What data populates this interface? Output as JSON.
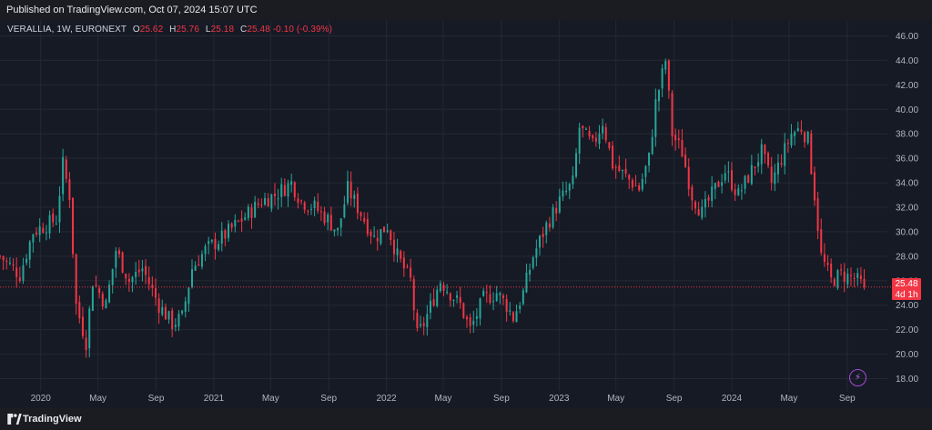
{
  "header": {
    "published": "Published on TradingView.com, Oct 07, 2024 15:07 UTC"
  },
  "legend": {
    "symbol": "VERALLIA, 1W, EURONEXT",
    "open_label": "O",
    "open": "25.62",
    "high_label": "H",
    "high": "25.76",
    "low_label": "L",
    "low": "25.18",
    "close_label": "C",
    "close": "25.48",
    "change": "-0.10 (-0.39%)"
  },
  "price_badge": {
    "price": "25.48",
    "countdown": "4d 1h"
  },
  "footer": {
    "brand": "TradingView"
  },
  "colors": {
    "up": "#26a69a",
    "down": "#f23645",
    "background": "#161a25",
    "grid": "#242833"
  },
  "icons": {
    "tv_logo": "tradingview-logo-icon",
    "bolt": "lightning-bolt-icon"
  },
  "chart_data": {
    "type": "candlestick",
    "interval": "1W",
    "ylim": [
      17,
      47
    ],
    "yticks": [
      "46.00",
      "44.00",
      "42.00",
      "40.00",
      "38.00",
      "36.00",
      "34.00",
      "32.00",
      "30.00",
      "28.00",
      "26.00",
      "24.00",
      "22.00",
      "20.00",
      "18.00"
    ],
    "xticks": [
      "2020",
      "May",
      "Sep",
      "2021",
      "May",
      "Sep",
      "2022",
      "May",
      "Sep",
      "2023",
      "May",
      "Sep",
      "2024",
      "May",
      "Sep"
    ],
    "xtick_dates": [
      "2020-01-01",
      "2020-05-01",
      "2020-09-01",
      "2021-01-01",
      "2021-05-01",
      "2021-09-01",
      "2022-01-01",
      "2022-05-01",
      "2022-09-01",
      "2023-01-01",
      "2023-05-01",
      "2023-09-01",
      "2024-01-01",
      "2024-05-01",
      "2024-09-01"
    ],
    "x_start": "2019-10-07",
    "x_end": "2024-11-25",
    "last_price": 25.48,
    "close_path": [
      [
        "2019-10-07",
        28.0
      ],
      [
        "2019-11-18",
        26.5
      ],
      [
        "2019-12-16",
        30.0
      ],
      [
        "2020-02-03",
        31.0
      ],
      [
        "2020-02-17",
        35.5
      ],
      [
        "2020-03-02",
        33.0
      ],
      [
        "2020-03-16",
        24.0
      ],
      [
        "2020-04-06",
        21.0
      ],
      [
        "2020-04-20",
        26.0
      ],
      [
        "2020-05-18",
        24.0
      ],
      [
        "2020-06-08",
        28.5
      ],
      [
        "2020-07-06",
        26.0
      ],
      [
        "2020-08-03",
        27.0
      ],
      [
        "2020-09-07",
        24.0
      ],
      [
        "2020-10-05",
        22.5
      ],
      [
        "2020-10-26",
        23.0
      ],
      [
        "2020-11-16",
        27.0
      ],
      [
        "2020-12-14",
        28.5
      ],
      [
        "2021-01-18",
        29.5
      ],
      [
        "2021-02-15",
        30.5
      ],
      [
        "2021-03-15",
        31.5
      ],
      [
        "2021-04-12",
        32.5
      ],
      [
        "2021-05-10",
        33.0
      ],
      [
        "2021-06-14",
        34.0
      ],
      [
        "2021-07-05",
        32.5
      ],
      [
        "2021-08-02",
        32.0
      ],
      [
        "2021-08-30",
        31.0
      ],
      [
        "2021-09-20",
        30.0
      ],
      [
        "2021-10-11",
        33.5
      ],
      [
        "2021-11-08",
        31.5
      ],
      [
        "2021-12-06",
        29.5
      ],
      [
        "2022-01-03",
        30.5
      ],
      [
        "2022-01-24",
        28.0
      ],
      [
        "2022-02-21",
        26.0
      ],
      [
        "2022-03-07",
        21.5
      ],
      [
        "2022-03-21",
        22.5
      ],
      [
        "2022-04-25",
        26.0
      ],
      [
        "2022-05-16",
        25.0
      ],
      [
        "2022-06-06",
        24.0
      ],
      [
        "2022-06-27",
        22.0
      ],
      [
        "2022-07-25",
        24.5
      ],
      [
        "2022-08-22",
        25.0
      ],
      [
        "2022-09-12",
        24.0
      ],
      [
        "2022-09-26",
        23.0
      ],
      [
        "2022-10-17",
        25.0
      ],
      [
        "2022-11-07",
        28.0
      ],
      [
        "2022-12-05",
        30.5
      ],
      [
        "2023-01-02",
        32.5
      ],
      [
        "2023-01-30",
        34.0
      ],
      [
        "2023-02-13",
        38.5
      ],
      [
        "2023-03-13",
        37.0
      ],
      [
        "2023-04-03",
        39.0
      ],
      [
        "2023-04-24",
        35.5
      ],
      [
        "2023-05-22",
        34.5
      ],
      [
        "2023-06-19",
        33.5
      ],
      [
        "2023-07-10",
        36.0
      ],
      [
        "2023-07-24",
        40.5
      ],
      [
        "2023-08-14",
        44.0
      ],
      [
        "2023-08-28",
        38.0
      ],
      [
        "2023-09-18",
        36.5
      ],
      [
        "2023-10-09",
        33.0
      ],
      [
        "2023-10-30",
        31.5
      ],
      [
        "2023-11-27",
        33.5
      ],
      [
        "2023-12-18",
        35.0
      ],
      [
        "2024-01-15",
        33.0
      ],
      [
        "2024-02-05",
        34.5
      ],
      [
        "2024-03-04",
        36.5
      ],
      [
        "2024-03-25",
        34.0
      ],
      [
        "2024-04-15",
        36.0
      ],
      [
        "2024-05-06",
        38.0
      ],
      [
        "2024-05-27",
        38.5
      ],
      [
        "2024-06-10",
        37.5
      ],
      [
        "2024-06-24",
        33.0
      ],
      [
        "2024-07-08",
        28.0
      ],
      [
        "2024-07-29",
        26.0
      ],
      [
        "2024-08-19",
        26.5
      ],
      [
        "2024-09-16",
        26.2
      ],
      [
        "2024-10-07",
        25.48
      ]
    ]
  }
}
